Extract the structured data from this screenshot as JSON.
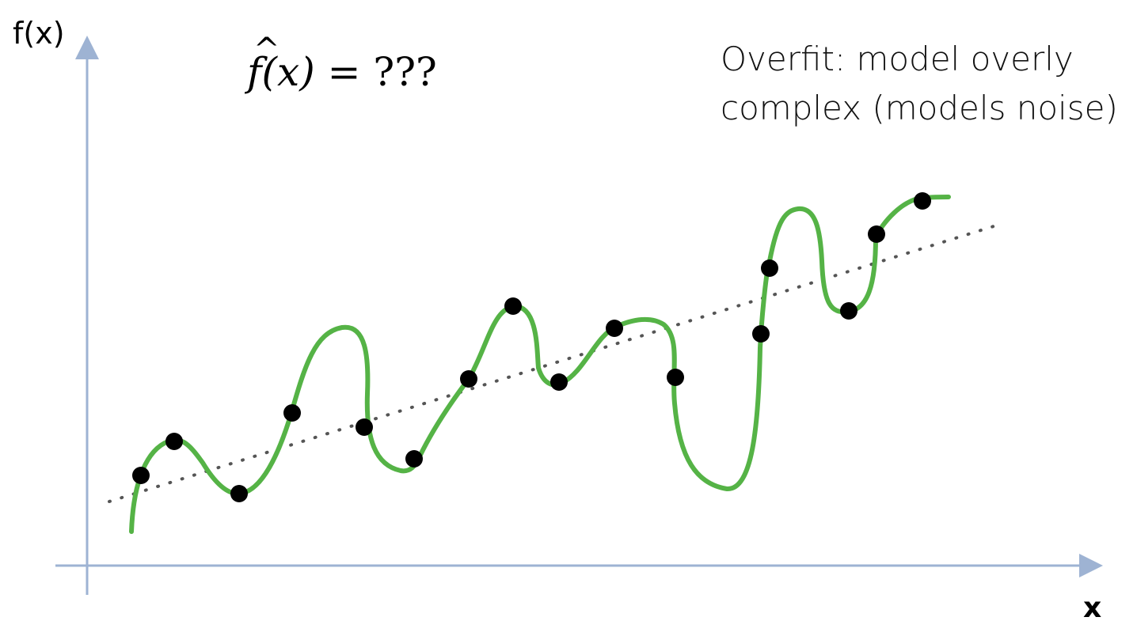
{
  "axes": {
    "y_label": "f(x)",
    "x_label": "x",
    "color": "#9eb3d3"
  },
  "formula": {
    "lhs_function": "f",
    "hat": "^",
    "lhs_argument": "(x)",
    "rhs": "= ???"
  },
  "annotation": {
    "line1": "Overfit: model overly",
    "line2": "complex (models noise)"
  },
  "colors": {
    "fit_curve": "#55b346",
    "data_points": "#000000",
    "trend_line": "#555555"
  }
}
